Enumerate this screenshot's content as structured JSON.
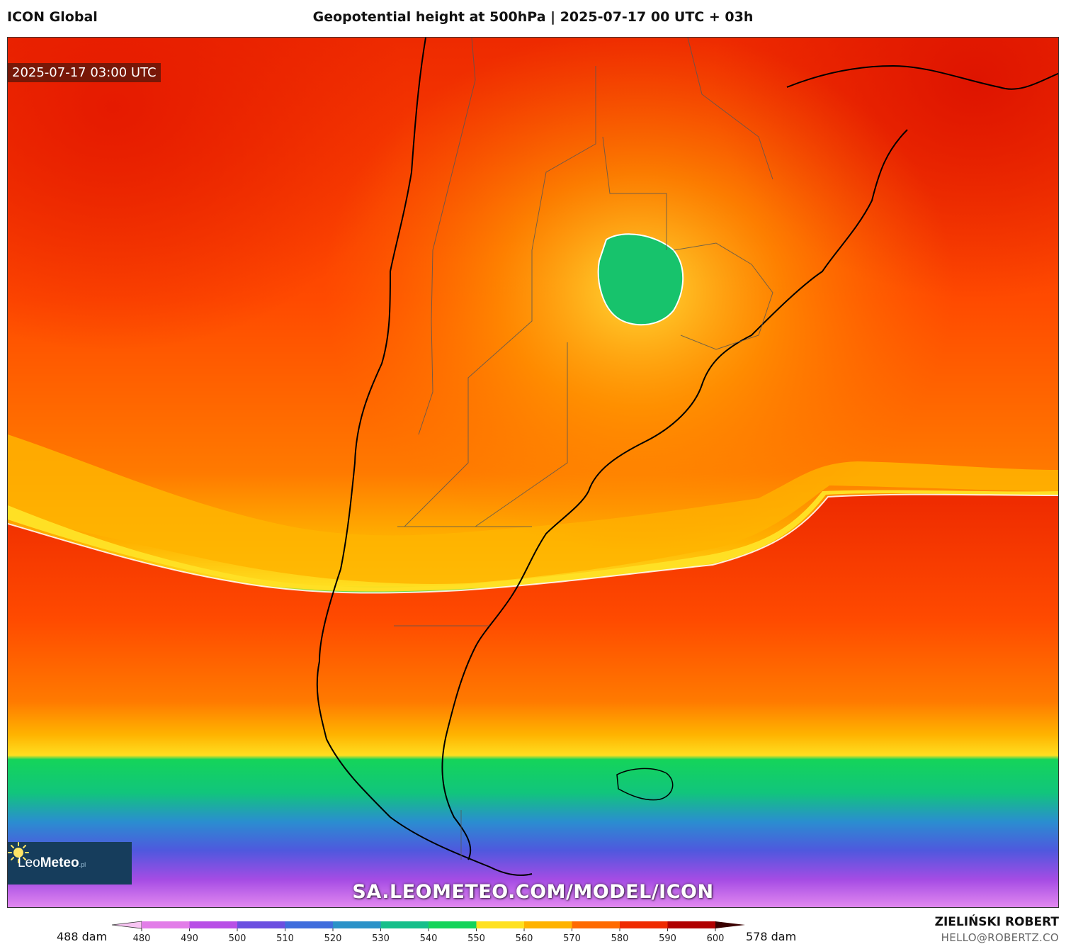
{
  "header": {
    "model": "ICON Global",
    "title": "Geopotential height at 500hPa | 2025-07-17 00 UTC + 03h"
  },
  "map": {
    "valid_time": "2025-07-17 03:00 UTC",
    "watermark": "SA.LEOMETEO.COM/MODEL/ICON",
    "field": "geopotential_height_500hPa",
    "region": "southern South America"
  },
  "logo": {
    "name_light": "Leo",
    "name_bold": "Meteo",
    "suffix": ".pl",
    "icon": "sun-icon"
  },
  "colorbar": {
    "min_label": "488 dam",
    "max_label": "578 dam",
    "ticks": [
      "480",
      "490",
      "500",
      "510",
      "520",
      "530",
      "540",
      "550",
      "560",
      "570",
      "580",
      "590",
      "600"
    ],
    "colors": [
      "#f7c4f2",
      "#e27de8",
      "#b84fe6",
      "#6b4fe0",
      "#3f6ddc",
      "#2a92c8",
      "#15bf8a",
      "#14d45a",
      "#ffe11f",
      "#ffb300",
      "#ff6a00",
      "#ef2a00",
      "#b00000",
      "#3a0000"
    ]
  },
  "credits": {
    "author": "ZIELIŃSKI ROBERT",
    "email": "HELLO@ROBERTZ.CO"
  }
}
